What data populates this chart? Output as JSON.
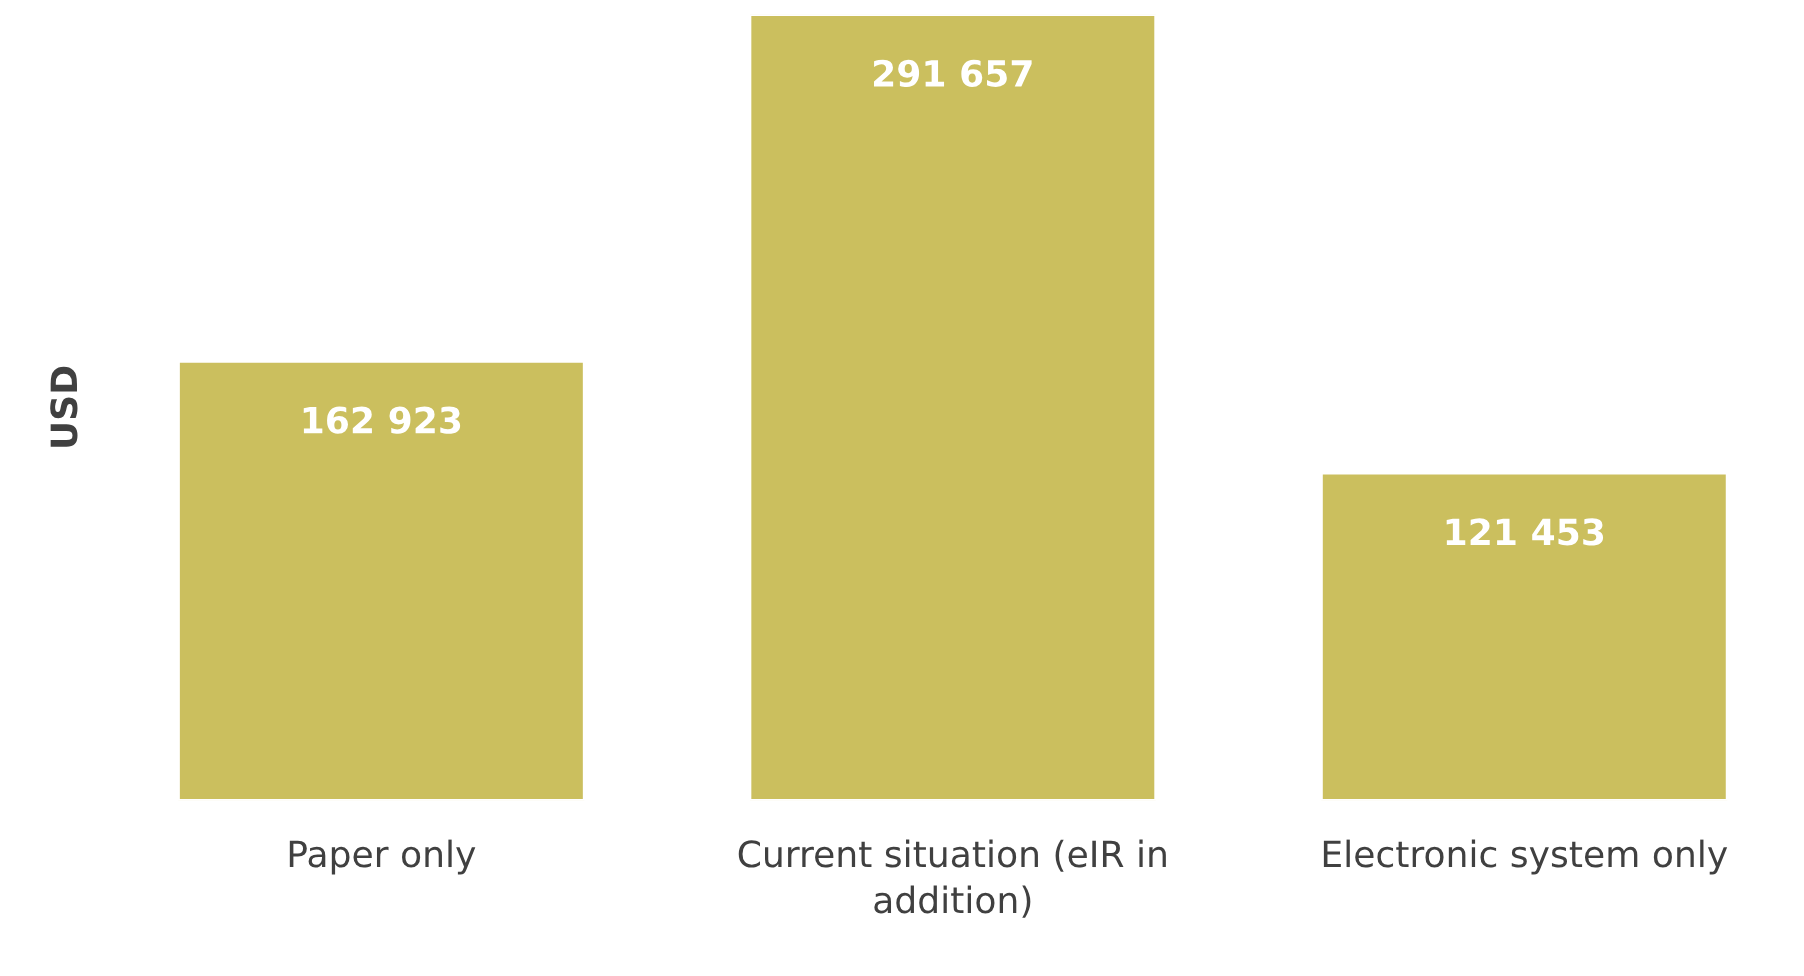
{
  "chart_data": {
    "type": "bar",
    "ylabel": "USD",
    "categories": [
      "Paper only",
      "Current situation (eIR in addition)",
      "Electronic system only"
    ],
    "values": [
      162923,
      291657,
      121453
    ],
    "value_labels": [
      "162 923",
      "291 657",
      "121 453"
    ],
    "color": "#cbbf5e",
    "grid": false,
    "legend": false
  }
}
